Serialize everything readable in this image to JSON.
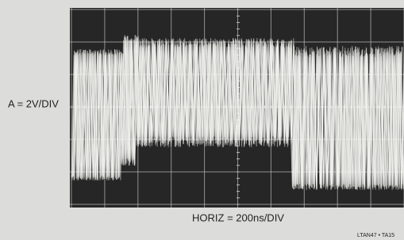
{
  "figure": {
    "vertical_scale": "A = 2V/DIV",
    "horizontal_scale": "HORIZ = 200ns/DIV",
    "figure_id": "LTAN47 • TA15"
  }
}
